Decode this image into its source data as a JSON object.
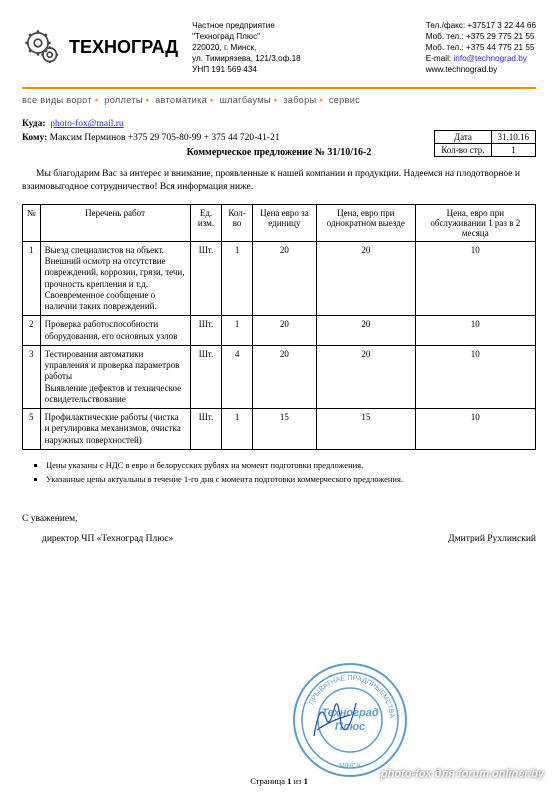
{
  "logo_text": "ТЕХНОГРАД",
  "company": {
    "l1": "Частное предприятие",
    "l2": "\"Техноград Плюс\"",
    "l3": "220020, г. Минск,",
    "l4": "ул. Тимирязева, 121/3,оф.18",
    "l5": "УНП 191 569 434"
  },
  "contacts": {
    "l1": "Тел./факс: +37517 3 22 44 66",
    "l2": "Моб. тел.: +375 29 775 21 55",
    "l3": "Моб. тел.: +375 44 775 21 55",
    "l4_label": "E-mail: ",
    "l4_link": "info@technograd.by",
    "l5": "www.technograd.by"
  },
  "nav": [
    "все виды ворот",
    "роллеты",
    "автоматика",
    "шлагбаумы",
    "заборы",
    "сервис"
  ],
  "addr": {
    "to_label": "Куда:",
    "to_link": "photo-fox@mail.ru",
    "whom_label": "Кому:",
    "whom_value": "Максим Перминов +375 29 705-80-99 + 375 44 720-41-21"
  },
  "offer_title": "Коммерческое предложение № 31/10/16-2",
  "meta": {
    "date_label": "Дата",
    "date_value": "31.10.16",
    "pages_label": "Кол-во стр.",
    "pages_value": "1"
  },
  "intro": "Мы благодарим Вас за интерес и внимание, проявленные к нашей компании и продукции. Надеемся на плодотворное и взаимовыгодное сотрудничество! Вся информация ниже.",
  "table": {
    "headers": [
      "№",
      "Перечень работ",
      "Ед. изм.",
      "Кол-во",
      "Цена евро за единицу",
      "Цена, евро при однократном выезде",
      "Цена, евро при обслуживании 1 раз в 2 месяца"
    ],
    "rows": [
      {
        "n": "1",
        "desc": "Выезд специалистов на объект.\nВнешний осмотр на отсутствие повреждений, коррозии, грязи, течи, прочность крепления и т.д. Своевременное сообщение о наличии таких повреждений.",
        "unit": "Шт.",
        "qty": "1",
        "p1": "20",
        "p2": "20",
        "p3": "10"
      },
      {
        "n": "2",
        "desc": "Проверка работоспособности оборудования, его основных узлов",
        "unit": "Шт.",
        "qty": "1",
        "p1": "20",
        "p2": "20",
        "p3": "10"
      },
      {
        "n": "3",
        "desc": "Тестирования автоматики управления и проверка параметров работы\nВыявление дефектов и техническое освидетельствование",
        "unit": "Шт.",
        "qty": "4",
        "p1": "20",
        "p2": "20",
        "p3": "10"
      },
      {
        "n": "5",
        "desc": "Профилактические работы (чистка и регулировка механизмов, очистка наружных поверхностей)",
        "unit": "Шт.",
        "qty": "1",
        "p1": "15",
        "p2": "15",
        "p3": "10"
      }
    ]
  },
  "notes": [
    "Цены указаны с НДС в евро и белорусских рублях на момент подготовки предложения.",
    "Указанные цены актуальны в течение 1-го дня с момента подготовки коммерческого предложения."
  ],
  "sign": {
    "regards": "С уважением,",
    "position": "директор ЧП «Техноград Плюс»",
    "name": "Дмитрий Рухлинский"
  },
  "footer": "Страница 1 из 1",
  "watermark": "photo-fox для forum.onliner.by",
  "colors": {
    "accent": "#ff8c00",
    "stamp": "#2a7ab8"
  }
}
